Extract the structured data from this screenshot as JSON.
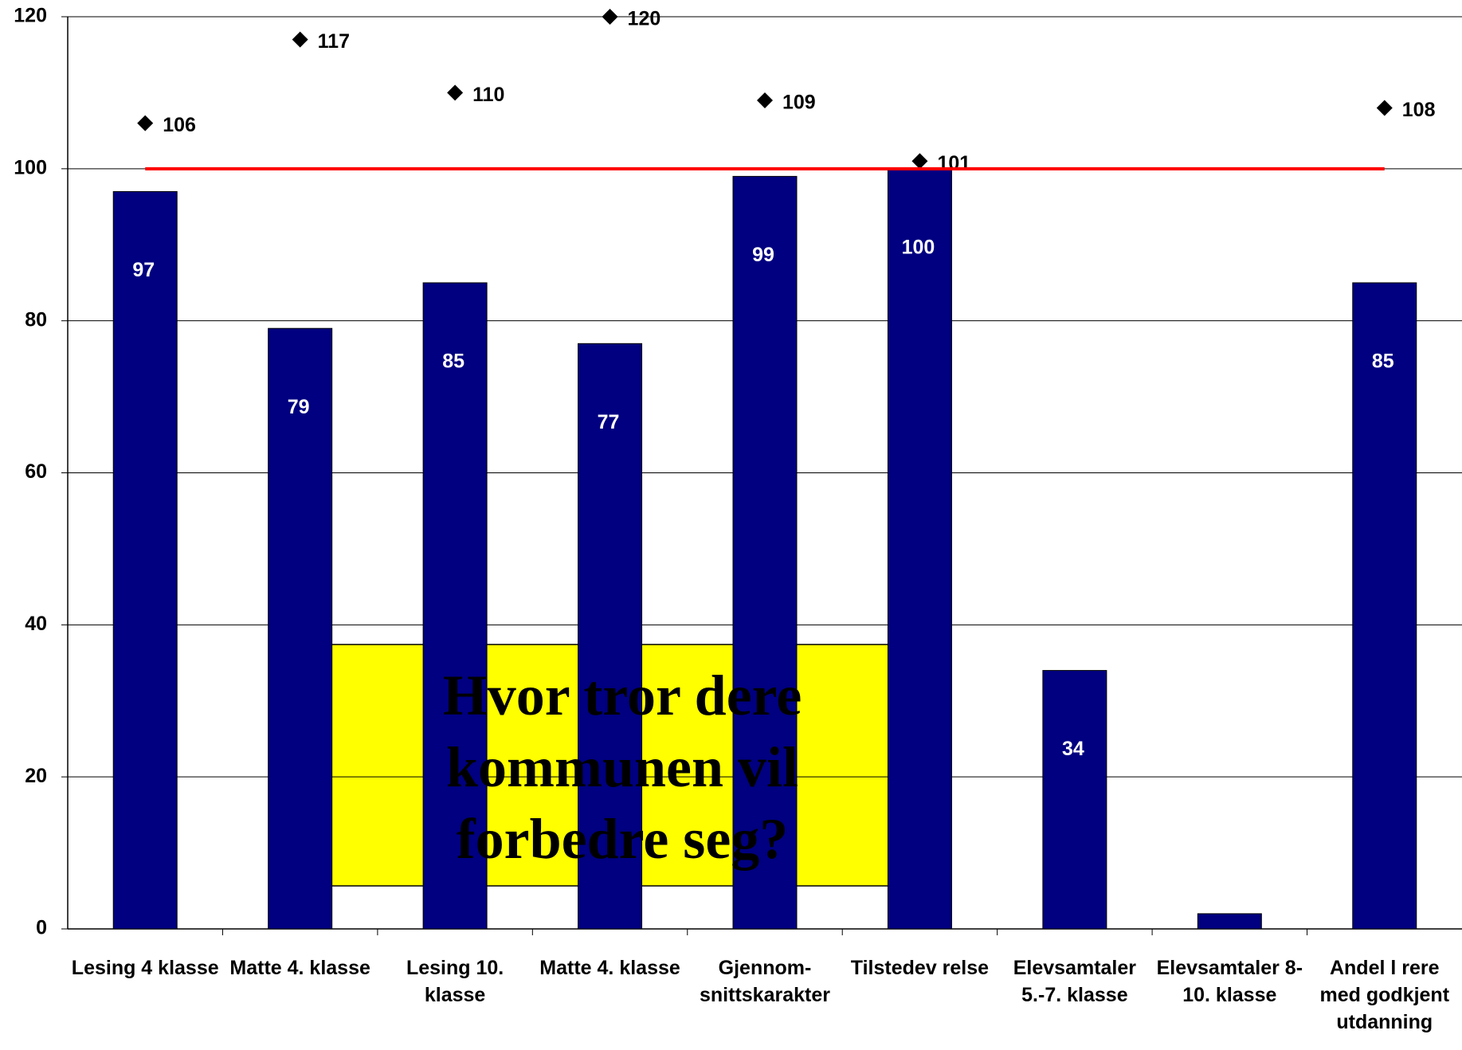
{
  "chart_data": {
    "type": "bar",
    "categories": [
      "Lesing 4 klasse",
      "Matte 4. klasse",
      "Lesing 10.\nklasse",
      "Matte 4. klasse",
      "Gjennom-\nsnittskarakter",
      "Tilstedev   relse",
      "Elevsamtaler\n5.-7. klasse",
      "Elevsamtaler 8-\n10. klasse",
      "Andel l   rere\nmed godkjent\nutdanning"
    ],
    "values": [
      97,
      79,
      85,
      77,
      99,
      100,
      34,
      2,
      85
    ],
    "value_labels": [
      "97",
      "79",
      "85",
      "77",
      "99",
      "100",
      "34",
      null,
      "85"
    ],
    "color": "#000080",
    "series": [
      {
        "type": "scatter",
        "color": "#000000",
        "values": [
          106,
          117,
          110,
          120,
          109,
          101,
          null,
          null,
          108
        ]
      },
      {
        "type": "line",
        "color": "#ff0000",
        "values": [
          100,
          100,
          100,
          100,
          100,
          100,
          100,
          100,
          100
        ]
      }
    ],
    "ylim": [
      0,
      120
    ],
    "yticks": [
      0,
      20,
      40,
      60,
      80,
      100,
      120
    ],
    "grid": true,
    "annotation": "Hvor tror dere kommunen vil forbedre seg?"
  }
}
